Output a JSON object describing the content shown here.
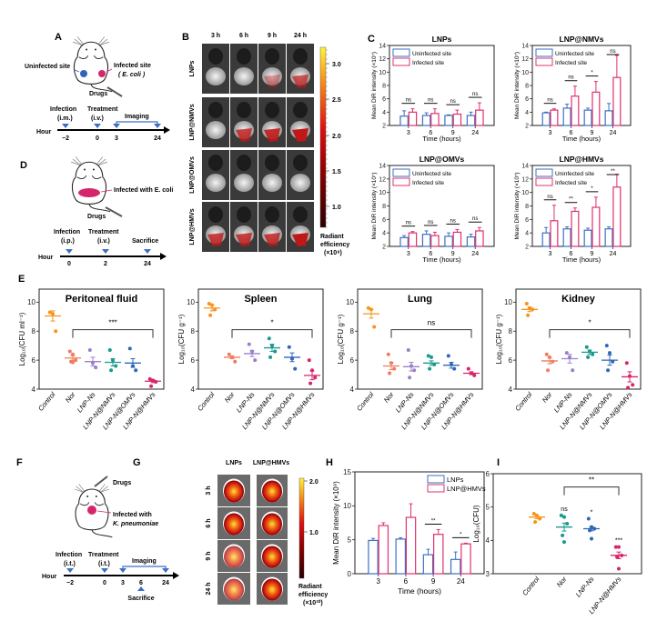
{
  "panels": {
    "A": "A",
    "B": "B",
    "C": "C",
    "D": "D",
    "E": "E",
    "F": "F",
    "G": "G",
    "H": "H",
    "I": "I"
  },
  "panel_a": {
    "uninfected_label": "Uninfected site",
    "infected_label": "Infected site",
    "infected_sub": "( E. coli )",
    "drugs": "Drugs",
    "timeline": {
      "hour": "Hour",
      "infection": "Infection",
      "infection_route": "(i.m.)",
      "treatment": "Treatment",
      "treatment_route": "(i.v.)",
      "imaging": "Imaging",
      "ticks": [
        "−2",
        "0",
        "3",
        "24"
      ]
    }
  },
  "panel_b": {
    "columns": [
      "3 h",
      "6 h",
      "9 h",
      "24 h"
    ],
    "rows": [
      "LNPs",
      "LNP@NMVs",
      "LNP@OMVs",
      "LNP@HMVs"
    ],
    "colorbar_ticks": [
      "3.0",
      "2.5",
      "2.0",
      "1.5",
      "1.0"
    ],
    "colorbar_label": [
      "Radiant",
      "efficiency",
      "(×10⁸)"
    ],
    "colormap": [
      "#2a0000",
      "#8b0000",
      "#e01010",
      "#f58a1a",
      "#fff23a"
    ]
  },
  "panel_d": {
    "infected_label": "Infected with E. coli",
    "drugs": "Drugs",
    "timeline": {
      "hour": "Hour",
      "infection": "Infection",
      "infection_route": "(i.p.)",
      "treatment": "Treatment",
      "treatment_route": "(i.v.)",
      "sacrifice": "Sacrifice",
      "ticks": [
        "0",
        "2",
        "24"
      ]
    }
  },
  "panel_f": {
    "drugs": "Drugs",
    "infected_label": "Infected with",
    "infected_sub": "K. pneumoniae",
    "timeline": {
      "hour": "Hour",
      "infection": "Infection",
      "infection_route": "(i.t.)",
      "treatment": "Treatment",
      "treatment_route": "(i.t.)",
      "imaging": "Imaging",
      "sacrifice": "Sacrifice",
      "ticks": [
        "−2",
        "0",
        "3",
        "6",
        "24"
      ]
    }
  },
  "panel_g": {
    "columns": [
      "LNPs",
      "LNP@HMVs"
    ],
    "rows": [
      "3 h",
      "6 h",
      "9 h",
      "24 h"
    ],
    "colorbar_ticks": [
      "2.0",
      "1.0"
    ],
    "colorbar_label": [
      "Radiant",
      "efficiency",
      "(×10¹⁰)"
    ]
  },
  "colors": {
    "uninfected": "#3b6fc6",
    "infected": "#e0306f",
    "control": "#f7941d",
    "nor": "#f07c5e",
    "lnp_ns": "#9b7fc9",
    "nmvs": "#1a9a8a",
    "omvs": "#2f66b8",
    "hmvs": "#d6266b"
  },
  "chart_data": [
    {
      "type": "bar",
      "title": "LNPs",
      "ylabel": "Mean DiR intensity (×10⁷)",
      "xlabel": "Time (hours)",
      "ylim": [
        2,
        14
      ],
      "yticks": [
        "2",
        "4",
        "6",
        "8",
        "10",
        "12",
        "14"
      ],
      "categories": [
        "3",
        "6",
        "9",
        "24"
      ],
      "legend": "top-left",
      "series": [
        {
          "name": "Uninfected site",
          "values": [
            3.4,
            3.5,
            3.5,
            3.5
          ],
          "errors": [
            0.8,
            0.4,
            0.1,
            0.5
          ]
        },
        {
          "name": "Infected site",
          "values": [
            4.0,
            3.8,
            3.7,
            4.3
          ],
          "errors": [
            0.5,
            0.7,
            0.6,
            1.1
          ]
        }
      ],
      "significance": [
        "ns",
        "ns",
        "ns",
        "ns"
      ]
    },
    {
      "type": "bar",
      "title": "LNP@NMVs",
      "ylabel": "Mean DiR intensity (×10⁷)",
      "xlabel": "Time (hours)",
      "ylim": [
        2,
        14
      ],
      "yticks": [
        "2",
        "4",
        "6",
        "8",
        "10",
        "12",
        "14"
      ],
      "categories": [
        "3",
        "6",
        "9",
        "24"
      ],
      "legend": "top-left",
      "series": [
        {
          "name": "Uninfected site",
          "values": [
            3.9,
            4.6,
            4.3,
            4.2
          ],
          "errors": [
            0.1,
            0.6,
            0.3,
            1.1
          ]
        },
        {
          "name": "Infected site",
          "values": [
            4.3,
            6.4,
            7.0,
            9.2
          ],
          "errors": [
            0.2,
            1.5,
            1.6,
            3.3
          ]
        }
      ],
      "significance": [
        "ns",
        "ns",
        "*",
        "ns"
      ]
    },
    {
      "type": "bar",
      "title": "LNP@OMVs",
      "ylabel": "Mean DiR intensity (×10⁷)",
      "xlabel": "Time (hours)",
      "ylim": [
        2,
        14
      ],
      "yticks": [
        "2",
        "4",
        "6",
        "8",
        "10",
        "12",
        "14"
      ],
      "categories": [
        "3",
        "6",
        "9",
        "24"
      ],
      "legend": "top-left",
      "series": [
        {
          "name": "Uninfected site",
          "values": [
            3.3,
            3.8,
            3.5,
            3.4
          ],
          "errors": [
            0.3,
            0.5,
            0.5,
            0.4
          ]
        },
        {
          "name": "Infected site",
          "values": [
            4.0,
            3.6,
            4.1,
            4.3
          ],
          "errors": [
            0.2,
            0.5,
            0.4,
            0.5
          ]
        }
      ],
      "significance": [
        "ns",
        "ns",
        "ns",
        "ns"
      ]
    },
    {
      "type": "bar",
      "title": "LNP@HMVs",
      "ylabel": "Mean DiR intensity (×10⁷)",
      "xlabel": "Time (hours)",
      "ylim": [
        2,
        14
      ],
      "yticks": [
        "2",
        "4",
        "6",
        "8",
        "10",
        "12",
        "14"
      ],
      "categories": [
        "3",
        "6",
        "9",
        "24"
      ],
      "legend": "top-left",
      "series": [
        {
          "name": "Uninfected site",
          "values": [
            4.0,
            4.6,
            4.4,
            4.6
          ],
          "errors": [
            0.8,
            0.3,
            0.3,
            0.3
          ]
        },
        {
          "name": "Infected site",
          "values": [
            5.8,
            7.2,
            7.8,
            10.8
          ],
          "errors": [
            2.3,
            0.5,
            1.5,
            1.9
          ]
        }
      ],
      "significance": [
        "ns",
        "**",
        "*",
        "**"
      ]
    },
    {
      "type": "scatter",
      "title": "Peritoneal fluid",
      "ylabel": "Log₁₀(CFU ml⁻¹)",
      "ylim": [
        4,
        10.9
      ],
      "yticks": [
        "4",
        "6",
        "8",
        "10"
      ],
      "categories": [
        "Control",
        "Nor",
        "LNP-Ns",
        "LNP-N@NMVs",
        "LNP-N@OMVs",
        "LNP-N@HMVs"
      ],
      "groups": [
        {
          "mean": 9.05,
          "sem": 0.35,
          "points": [
            9.3,
            9.2,
            8.0
          ]
        },
        {
          "mean": 6.15,
          "sem": 0.15,
          "points": [
            6.6,
            6.4,
            6.0,
            5.9,
            5.85
          ]
        },
        {
          "mean": 5.9,
          "sem": 0.3,
          "points": [
            6.7,
            5.8,
            5.5
          ]
        },
        {
          "mean": 5.85,
          "sem": 0.25,
          "points": [
            6.7,
            6.0,
            5.6,
            5.3
          ]
        },
        {
          "mean": 5.8,
          "sem": 0.3,
          "points": [
            6.8,
            5.6,
            5.3
          ]
        },
        {
          "mean": 4.55,
          "sem": 0.1,
          "points": [
            4.7,
            4.6,
            4.5,
            4.2
          ]
        }
      ],
      "bracket": {
        "from": "Nor",
        "to": "LNP-N@HMVs",
        "label": "***"
      }
    },
    {
      "type": "scatter",
      "title": "Spleen",
      "ylabel": "Log₁₀(CFU g⁻¹)",
      "ylim": [
        4,
        10.9
      ],
      "yticks": [
        "4",
        "6",
        "8",
        "10"
      ],
      "categories": [
        "Control",
        "Nor",
        "LNP-Ns",
        "LNP-N@NMVs",
        "LNP-N@OMVs",
        "LNP-N@HMVs"
      ],
      "groups": [
        {
          "mean": 9.6,
          "sem": 0.2,
          "points": [
            9.9,
            9.8,
            9.5,
            9.1
          ]
        },
        {
          "mean": 6.2,
          "sem": 0.1,
          "points": [
            6.4,
            6.2,
            5.9
          ]
        },
        {
          "mean": 6.45,
          "sem": 0.2,
          "points": [
            7.1,
            6.6,
            6.0
          ]
        },
        {
          "mean": 6.85,
          "sem": 0.25,
          "points": [
            7.5,
            7.0,
            6.6,
            6.2
          ]
        },
        {
          "mean": 6.2,
          "sem": 0.3,
          "points": [
            6.9,
            6.1,
            5.4
          ]
        },
        {
          "mean": 4.95,
          "sem": 0.3,
          "points": [
            6.0,
            5.3,
            4.8,
            4.4
          ]
        }
      ],
      "bracket": {
        "from": "Nor",
        "to": "LNP-N@HMVs",
        "label": "*"
      }
    },
    {
      "type": "scatter",
      "title": "Lung",
      "ylabel": "Log₁₀(CFU g⁻¹)",
      "ylim": [
        4,
        10.9
      ],
      "yticks": [
        "4",
        "6",
        "8",
        "10"
      ],
      "categories": [
        "Control",
        "Nor",
        "LNP-Ns",
        "LNP-N@NMVs",
        "LNP-N@OMVs",
        "LNP-N@HMVs"
      ],
      "groups": [
        {
          "mean": 9.2,
          "sem": 0.3,
          "points": [
            9.6,
            9.5,
            8.3
          ]
        },
        {
          "mean": 5.6,
          "sem": 0.25,
          "points": [
            6.4,
            5.8,
            5.4,
            5.1
          ]
        },
        {
          "mean": 5.55,
          "sem": 0.3,
          "points": [
            6.7,
            5.6,
            5.3,
            4.8
          ]
        },
        {
          "mean": 5.8,
          "sem": 0.15,
          "points": [
            6.3,
            6.2,
            5.7,
            5.4
          ]
        },
        {
          "mean": 5.65,
          "sem": 0.2,
          "points": [
            6.3,
            5.7,
            5.4
          ]
        },
        {
          "mean": 5.1,
          "sem": 0.1,
          "points": [
            5.4,
            5.1,
            4.95
          ]
        }
      ],
      "bracket": {
        "from": "Nor",
        "to": "LNP-N@HMVs",
        "label": "ns"
      }
    },
    {
      "type": "scatter",
      "title": "Kidney",
      "ylabel": "Log₁₀(CFU g⁻¹)",
      "ylim": [
        4,
        10.9
      ],
      "yticks": [
        "4",
        "6",
        "8",
        "10"
      ],
      "categories": [
        "Control",
        "Nor",
        "LNP-Ns",
        "LNP-N@NMVs",
        "LNP-N@OMVs",
        "LNP-N@HMVs"
      ],
      "groups": [
        {
          "mean": 9.5,
          "sem": 0.15,
          "points": [
            9.9,
            9.6,
            9.5,
            9.1
          ]
        },
        {
          "mean": 5.95,
          "sem": 0.2,
          "points": [
            6.4,
            6.2,
            5.9,
            5.3
          ]
        },
        {
          "mean": 6.1,
          "sem": 0.3,
          "points": [
            6.5,
            6.2,
            5.3
          ]
        },
        {
          "mean": 6.55,
          "sem": 0.15,
          "points": [
            6.9,
            6.6,
            6.4,
            6.2
          ]
        },
        {
          "mean": 6.0,
          "sem": 0.35,
          "points": [
            7.0,
            6.5,
            5.9,
            5.3
          ]
        },
        {
          "mean": 4.85,
          "sem": 0.35,
          "points": [
            5.8,
            4.9,
            4.3,
            4.1
          ]
        }
      ],
      "bracket": {
        "from": "Nor",
        "to": "LNP-N@HMVs",
        "label": "*"
      }
    },
    {
      "type": "bar",
      "title": "",
      "ylabel": "Mean DiR intensity (×10⁹)",
      "xlabel": "Time (hours)",
      "ylim": [
        0,
        15
      ],
      "yticks": [
        "0",
        "5",
        "10",
        "15"
      ],
      "categories": [
        "3",
        "6",
        "9",
        "24"
      ],
      "legend": "top-right",
      "series": [
        {
          "name": "LNPs",
          "values": [
            4.9,
            5.1,
            2.8,
            2.1
          ],
          "errors": [
            0.3,
            0.2,
            0.8,
            1.1
          ]
        },
        {
          "name": "LNP@HMVs",
          "values": [
            7.1,
            8.3,
            5.8,
            4.4
          ],
          "errors": [
            0.4,
            2.0,
            0.7,
            0.1
          ]
        }
      ],
      "significance": [
        "",
        "",
        "**",
        "*"
      ]
    },
    {
      "type": "scatter",
      "title": "",
      "ylabel": "Log₁₀(CFU)",
      "ylim": [
        3,
        6
      ],
      "yticks": [
        "3",
        "4",
        "5",
        "6"
      ],
      "categories": [
        "Control",
        "Nor",
        "LNP-Ns",
        "LNP-N@HMVs"
      ],
      "groups": [
        {
          "mean": 4.7,
          "sem": 0.05,
          "points": [
            4.8,
            4.75,
            4.65,
            4.55
          ],
          "label": ""
        },
        {
          "mean": 4.4,
          "sem": 0.12,
          "points": [
            4.75,
            4.7,
            4.5,
            4.15,
            3.95
          ],
          "label": "ns"
        },
        {
          "mean": 4.35,
          "sem": 0.06,
          "points": [
            4.65,
            4.4,
            4.35,
            4.3,
            4.05
          ],
          "label": "*"
        },
        {
          "mean": 3.55,
          "sem": 0.1,
          "points": [
            3.8,
            3.8,
            3.55,
            3.5,
            3.15
          ],
          "label": "***"
        }
      ],
      "bracket": {
        "from": "Nor",
        "to": "LNP-N@HMVs",
        "label": "**"
      }
    }
  ]
}
